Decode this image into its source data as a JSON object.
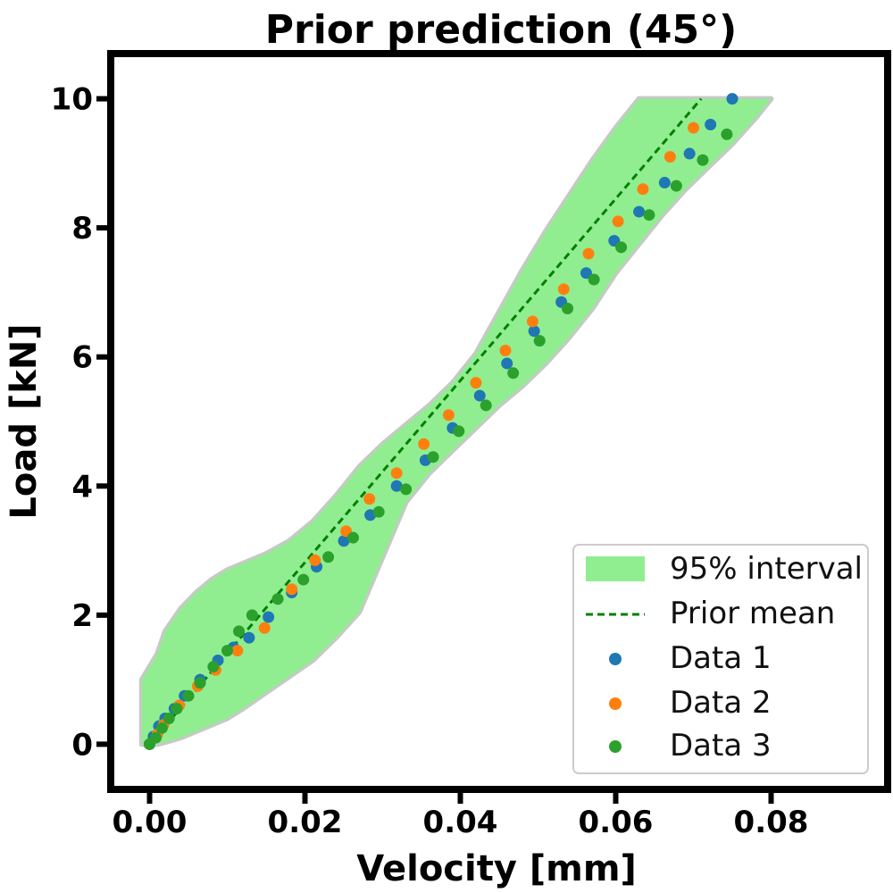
{
  "chart_data": {
    "type": "scatter",
    "title": "Prior prediction (45°)",
    "xlabel": "Velocity [mm]",
    "ylabel": "Load [kN]",
    "xlim": [
      -0.005,
      0.095
    ],
    "ylim": [
      -0.7,
      10.7
    ],
    "xticks": [
      0.0,
      0.02,
      0.04,
      0.06,
      0.08
    ],
    "xtick_labels": [
      "0.00",
      "0.02",
      "0.04",
      "0.06",
      "0.08"
    ],
    "yticks": [
      0,
      2,
      4,
      6,
      8,
      10
    ],
    "ytick_labels": [
      "0",
      "2",
      "4",
      "6",
      "8",
      "10"
    ],
    "grid": false,
    "legend_position": "bottom-right",
    "legend": {
      "interval": "95% interval",
      "mean": "Prior mean",
      "data1": "Data 1",
      "data2": "Data 2",
      "data3": "Data 3"
    },
    "colors": {
      "interval_fill": "#90ee90",
      "interval_edge": "#c8c8c8",
      "mean": "#008000",
      "data1": "#1f77b4",
      "data2": "#ff7f0e",
      "data3": "#2ca02c"
    },
    "prior_mean": {
      "x": [
        0.0,
        0.071
      ],
      "y": [
        0.0,
        10.0
      ]
    },
    "interval": {
      "x": [
        -0.001,
        0.001,
        0.002,
        0.004,
        0.006,
        0.008,
        0.01,
        0.012,
        0.015,
        0.018,
        0.021,
        0.024,
        0.027,
        0.03,
        0.033,
        0.036,
        0.039,
        0.042,
        0.045,
        0.048,
        0.051,
        0.054,
        0.057,
        0.06,
        0.063,
        0.066,
        0.069,
        0.072,
        0.075,
        0.078,
        0.08
      ],
      "lower": [
        0.0,
        0.0,
        0.03,
        0.1,
        0.2,
        0.3,
        0.4,
        0.55,
        0.8,
        1.05,
        1.3,
        1.65,
        2.05,
        2.9,
        3.75,
        4.2,
        4.55,
        4.9,
        5.25,
        5.55,
        5.9,
        6.3,
        6.75,
        7.3,
        7.75,
        8.2,
        8.6,
        8.95,
        9.3,
        9.7,
        10.0
      ],
      "upper": [
        1.0,
        1.4,
        1.75,
        2.1,
        2.35,
        2.55,
        2.7,
        2.8,
        2.95,
        3.15,
        3.45,
        3.85,
        4.3,
        4.65,
        4.95,
        5.25,
        5.6,
        6.05,
        6.7,
        7.35,
        7.95,
        8.5,
        9.05,
        9.55,
        10.0,
        10.0,
        10.0,
        10.0,
        10.0,
        10.0,
        10.0
      ]
    },
    "series": [
      {
        "name": "Data 1",
        "x": [
          0.0,
          0.0005,
          0.0012,
          0.002,
          0.0032,
          0.0045,
          0.0065,
          0.0088,
          0.0108,
          0.0128,
          0.0153,
          0.0183,
          0.0215,
          0.025,
          0.0284,
          0.0318,
          0.0355,
          0.039,
          0.0425,
          0.046,
          0.0495,
          0.053,
          0.0562,
          0.0598,
          0.063,
          0.0663,
          0.0695,
          0.0722,
          0.075
        ],
        "y": [
          0.0,
          0.12,
          0.28,
          0.4,
          0.55,
          0.75,
          1.0,
          1.3,
          1.5,
          1.65,
          1.97,
          2.35,
          2.75,
          3.15,
          3.55,
          4.0,
          4.4,
          4.9,
          5.4,
          5.9,
          6.4,
          6.85,
          7.3,
          7.8,
          8.25,
          8.7,
          9.15,
          9.6,
          10.0
        ]
      },
      {
        "name": "Data 2",
        "x": [
          0.0,
          0.001,
          0.0018,
          0.0038,
          0.0062,
          0.0085,
          0.0113,
          0.0148,
          0.0183,
          0.0213,
          0.0253,
          0.0283,
          0.0318,
          0.0353,
          0.0385,
          0.042,
          0.0458,
          0.0493,
          0.0533,
          0.0565,
          0.0603,
          0.0635,
          0.067,
          0.07
        ],
        "y": [
          0.0,
          0.15,
          0.3,
          0.6,
          0.9,
          1.15,
          1.45,
          1.8,
          2.4,
          2.85,
          3.3,
          3.8,
          4.2,
          4.65,
          5.1,
          5.6,
          6.1,
          6.55,
          7.05,
          7.6,
          8.1,
          8.6,
          9.1,
          9.55
        ]
      },
      {
        "name": "Data 3",
        "x": [
          0.0,
          0.0008,
          0.0016,
          0.0025,
          0.0035,
          0.005,
          0.0065,
          0.0082,
          0.01,
          0.0115,
          0.0132,
          0.0165,
          0.0198,
          0.023,
          0.0262,
          0.0295,
          0.033,
          0.0365,
          0.0398,
          0.0433,
          0.0468,
          0.0502,
          0.0538,
          0.0572,
          0.0607,
          0.0643,
          0.0678,
          0.0712,
          0.0743
        ],
        "y": [
          0.0,
          0.1,
          0.25,
          0.4,
          0.55,
          0.75,
          0.95,
          1.2,
          1.45,
          1.75,
          2.0,
          2.25,
          2.55,
          2.9,
          3.2,
          3.6,
          3.95,
          4.45,
          4.85,
          5.25,
          5.75,
          6.25,
          6.75,
          7.2,
          7.7,
          8.2,
          8.65,
          9.05,
          9.45
        ]
      }
    ]
  }
}
